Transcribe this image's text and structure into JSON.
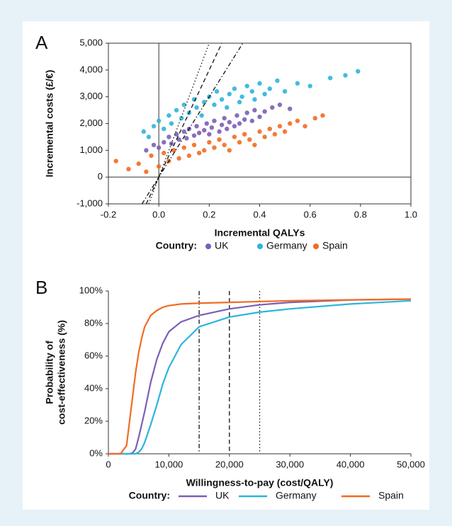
{
  "chart_data": [
    {
      "type": "scatter",
      "panel_label": "A",
      "x_label": "Incremental QALYs",
      "y_label": "Incremental costs (£/€)",
      "legend_title": "Country:",
      "xlim": [
        -0.2,
        1.0
      ],
      "xticks": [
        -0.2,
        {
          "value": 0,
          "label": "0.0"
        },
        0.2,
        0.4,
        0.6,
        0.8,
        {
          "value": 1,
          "label": "1.0"
        }
      ],
      "ylim": [
        -1000,
        5000
      ],
      "yticks": [
        {
          "value": -1000,
          "label": "-1,000"
        },
        0,
        {
          "value": 1000,
          "label": "1,000"
        },
        {
          "value": 2000,
          "label": "2,000"
        },
        {
          "value": 3000,
          "label": "3,000"
        },
        {
          "value": 4000,
          "label": "4,000"
        },
        {
          "value": 5000,
          "label": "5,000"
        }
      ],
      "reference_lines": [
        {
          "value": 15000,
          "dash": "6,3,1.5,3"
        },
        {
          "value": 20000,
          "dash": "6,4"
        },
        {
          "value": 25000,
          "dash": "1.5,3"
        }
      ],
      "series": [
        {
          "name": "UK",
          "color": "#7b5fb5",
          "x": [
            -0.05,
            -0.02,
            0.0,
            0.02,
            0.04,
            0.05,
            0.07,
            0.08,
            0.1,
            0.11,
            0.12,
            0.14,
            0.15,
            0.16,
            0.18,
            0.19,
            0.2,
            0.21,
            0.22,
            0.24,
            0.25,
            0.26,
            0.27,
            0.28,
            0.3,
            0.31,
            0.32,
            0.34,
            0.35,
            0.37,
            0.38,
            0.4,
            0.42,
            0.45,
            0.48,
            0.52
          ],
          "values": [
            1000,
            1200,
            1100,
            1300,
            1500,
            1250,
            1600,
            1400,
            1700,
            1450,
            1800,
            1550,
            1900,
            1650,
            1750,
            2000,
            1600,
            1850,
            2100,
            1700,
            1950,
            2200,
            1800,
            2050,
            1900,
            2300,
            2000,
            2150,
            2400,
            2100,
            2500,
            2250,
            2450,
            2600,
            2700,
            2550
          ]
        },
        {
          "name": "Germany",
          "color": "#2bb5dc",
          "x": [
            -0.06,
            -0.04,
            -0.02,
            0.0,
            0.02,
            0.04,
            0.05,
            0.07,
            0.09,
            0.1,
            0.12,
            0.14,
            0.15,
            0.17,
            0.18,
            0.2,
            0.22,
            0.23,
            0.25,
            0.27,
            0.28,
            0.3,
            0.32,
            0.33,
            0.35,
            0.37,
            0.38,
            0.4,
            0.42,
            0.44,
            0.47,
            0.5,
            0.55,
            0.6,
            0.68,
            0.74,
            0.79
          ],
          "values": [
            1700,
            1500,
            1900,
            2100,
            1800,
            2300,
            2000,
            2500,
            2200,
            2700,
            2400,
            2900,
            2600,
            2300,
            2800,
            3000,
            2700,
            3200,
            2900,
            2600,
            3100,
            3300,
            2800,
            3000,
            3400,
            3200,
            2900,
            3500,
            3100,
            3300,
            3600,
            3200,
            3500,
            3400,
            3700,
            3800,
            3950
          ]
        },
        {
          "name": "Spain",
          "color": "#f26b21",
          "x": [
            -0.17,
            -0.12,
            -0.08,
            -0.05,
            -0.03,
            0.0,
            0.02,
            0.04,
            0.06,
            0.08,
            0.1,
            0.12,
            0.14,
            0.16,
            0.18,
            0.2,
            0.22,
            0.24,
            0.26,
            0.28,
            0.3,
            0.32,
            0.34,
            0.36,
            0.38,
            0.4,
            0.42,
            0.44,
            0.46,
            0.48,
            0.5,
            0.52,
            0.55,
            0.58,
            0.62,
            0.65
          ],
          "values": [
            600,
            300,
            500,
            200,
            800,
            400,
            900,
            600,
            1000,
            700,
            1100,
            800,
            1200,
            900,
            1000,
            1300,
            1100,
            1400,
            1200,
            1000,
            1500,
            1300,
            1600,
            1400,
            1200,
            1700,
            1500,
            1800,
            1600,
            1900,
            1700,
            2000,
            2100,
            1900,
            2200,
            2300
          ]
        }
      ]
    },
    {
      "type": "line",
      "panel_label": "B",
      "x_label": "Willingness-to-pay (cost/QALY)",
      "y_label": [
        "Probability of",
        "cost-effectiveness (%)"
      ],
      "legend_title": "Country:",
      "xlim": [
        0,
        50000
      ],
      "xticks": [
        0,
        {
          "value": 10000,
          "label": "10,000"
        },
        {
          "value": 20000,
          "label": "20,000"
        },
        {
          "value": 30000,
          "label": "30,000"
        },
        {
          "value": 40000,
          "label": "40,000"
        },
        {
          "value": 50000,
          "label": "50,000"
        }
      ],
      "ylim": [
        0,
        100
      ],
      "yticks": [
        {
          "value": 0,
          "label": "0%"
        },
        {
          "value": 20,
          "label": "20%"
        },
        {
          "value": 40,
          "label": "40%"
        },
        {
          "value": 60,
          "label": "60%"
        },
        {
          "value": 80,
          "label": "80%"
        },
        {
          "value": 100,
          "label": "100%"
        }
      ],
      "reference_lines": [
        {
          "value": 15000,
          "dash": "6,3,1.5,3"
        },
        {
          "value": 20000,
          "dash": "6,4"
        },
        {
          "value": 25000,
          "dash": "1.5,3"
        }
      ],
      "x": [
        0,
        2000,
        3000,
        3500,
        4000,
        4500,
        5000,
        5500,
        6000,
        7000,
        8000,
        9000,
        10000,
        12000,
        15000,
        20000,
        25000,
        30000,
        40000,
        50000
      ],
      "series": [
        {
          "name": "UK",
          "color": "#7b5fb5",
          "values": [
            0,
            0,
            0,
            0,
            0.5,
            3,
            10,
            18,
            26,
            44,
            58,
            68,
            75,
            81,
            85,
            89,
            91.5,
            93,
            94.5,
            95
          ]
        },
        {
          "name": "Germany",
          "color": "#2bb5dc",
          "values": [
            0,
            0,
            0,
            0,
            0,
            0,
            1,
            3,
            7,
            18,
            30,
            43,
            53,
            67,
            78,
            84,
            87,
            89,
            92,
            94
          ]
        },
        {
          "name": "Spain",
          "color": "#f26b21",
          "values": [
            0,
            0,
            5,
            20,
            35,
            50,
            62,
            71,
            78,
            85,
            88,
            90,
            91,
            92,
            92.5,
            93,
            93.5,
            94,
            94.5,
            95
          ]
        }
      ]
    }
  ]
}
